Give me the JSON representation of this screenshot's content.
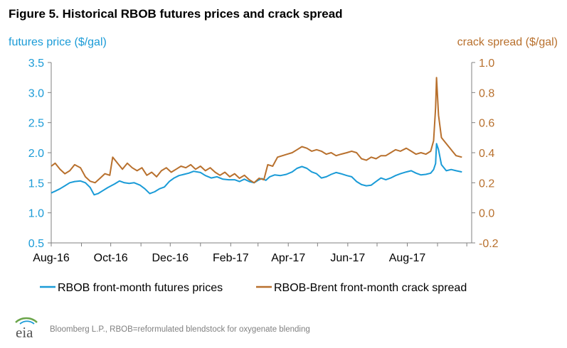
{
  "title": "Figure 5. Historical RBOB futures prices and crack spread",
  "source": "Bloomberg L.P., RBOB=reformulated blendstock for oxygenate blending",
  "logo_text": "eia",
  "colors": {
    "futures": "#1a9bd7",
    "crack": "#b8702d",
    "axis": "#808080"
  },
  "chart_data": {
    "type": "line",
    "title": "Figure 5. Historical RBOB futures prices and crack spread",
    "x_ticks": [
      "Aug-16",
      "Oct-16",
      "Dec-16",
      "Feb-17",
      "Apr-17",
      "Jun-17",
      "Aug-17"
    ],
    "x_range": [
      "2016-08-01",
      "2017-10-06"
    ],
    "y_left": {
      "label": "futures price ($/gal)",
      "range": [
        0.5,
        3.5
      ],
      "ticks": [
        "0.5",
        "1.0",
        "1.5",
        "2.0",
        "2.5",
        "3.0",
        "3.5"
      ]
    },
    "y_right": {
      "label": "crack spread ($/gal)",
      "range": [
        -0.2,
        1.0
      ],
      "ticks": [
        "-0.2",
        "0.0",
        "0.2",
        "0.4",
        "0.6",
        "0.8",
        "1.0"
      ]
    },
    "grid": false,
    "legend_position": "bottom",
    "series": [
      {
        "name": "RBOB front-month futures prices",
        "axis": "left",
        "color": "#1a9bd7",
        "points": [
          [
            "2016-08-01",
            1.33
          ],
          [
            "2016-08-05",
            1.36
          ],
          [
            "2016-08-10",
            1.4
          ],
          [
            "2016-08-15",
            1.45
          ],
          [
            "2016-08-20",
            1.5
          ],
          [
            "2016-08-25",
            1.52
          ],
          [
            "2016-08-31",
            1.53
          ],
          [
            "2016-09-05",
            1.5
          ],
          [
            "2016-09-10",
            1.42
          ],
          [
            "2016-09-14",
            1.3
          ],
          [
            "2016-09-18",
            1.32
          ],
          [
            "2016-09-22",
            1.36
          ],
          [
            "2016-09-28",
            1.42
          ],
          [
            "2016-10-05",
            1.48
          ],
          [
            "2016-10-10",
            1.53
          ],
          [
            "2016-10-15",
            1.5
          ],
          [
            "2016-10-20",
            1.49
          ],
          [
            "2016-10-25",
            1.5
          ],
          [
            "2016-10-31",
            1.46
          ],
          [
            "2016-11-05",
            1.4
          ],
          [
            "2016-11-10",
            1.32
          ],
          [
            "2016-11-15",
            1.35
          ],
          [
            "2016-11-20",
            1.4
          ],
          [
            "2016-11-25",
            1.43
          ],
          [
            "2016-11-30",
            1.52
          ],
          [
            "2016-12-05",
            1.58
          ],
          [
            "2016-12-10",
            1.62
          ],
          [
            "2016-12-15",
            1.64
          ],
          [
            "2016-12-20",
            1.66
          ],
          [
            "2016-12-25",
            1.69
          ],
          [
            "2017-01-01",
            1.67
          ],
          [
            "2017-01-06",
            1.62
          ],
          [
            "2017-01-12",
            1.58
          ],
          [
            "2017-01-18",
            1.6
          ],
          [
            "2017-01-24",
            1.56
          ],
          [
            "2017-01-30",
            1.55
          ],
          [
            "2017-02-05",
            1.55
          ],
          [
            "2017-02-10",
            1.52
          ],
          [
            "2017-02-15",
            1.56
          ],
          [
            "2017-02-20",
            1.52
          ],
          [
            "2017-02-25",
            1.5
          ],
          [
            "2017-03-01",
            1.54
          ],
          [
            "2017-03-05",
            1.57
          ],
          [
            "2017-03-09",
            1.54
          ],
          [
            "2017-03-13",
            1.6
          ],
          [
            "2017-03-18",
            1.63
          ],
          [
            "2017-03-24",
            1.62
          ],
          [
            "2017-03-30",
            1.64
          ],
          [
            "2017-04-05",
            1.68
          ],
          [
            "2017-04-10",
            1.74
          ],
          [
            "2017-04-15",
            1.77
          ],
          [
            "2017-04-20",
            1.74
          ],
          [
            "2017-04-25",
            1.68
          ],
          [
            "2017-04-30",
            1.65
          ],
          [
            "2017-05-05",
            1.58
          ],
          [
            "2017-05-10",
            1.6
          ],
          [
            "2017-05-15",
            1.64
          ],
          [
            "2017-05-20",
            1.67
          ],
          [
            "2017-05-25",
            1.65
          ],
          [
            "2017-05-31",
            1.62
          ],
          [
            "2017-06-05",
            1.6
          ],
          [
            "2017-06-10",
            1.52
          ],
          [
            "2017-06-15",
            1.47
          ],
          [
            "2017-06-20",
            1.45
          ],
          [
            "2017-06-25",
            1.46
          ],
          [
            "2017-06-30",
            1.52
          ],
          [
            "2017-07-05",
            1.58
          ],
          [
            "2017-07-10",
            1.55
          ],
          [
            "2017-07-15",
            1.58
          ],
          [
            "2017-07-20",
            1.62
          ],
          [
            "2017-07-25",
            1.65
          ],
          [
            "2017-07-31",
            1.68
          ],
          [
            "2017-08-05",
            1.7
          ],
          [
            "2017-08-10",
            1.66
          ],
          [
            "2017-08-15",
            1.63
          ],
          [
            "2017-08-20",
            1.64
          ],
          [
            "2017-08-25",
            1.66
          ],
          [
            "2017-08-28",
            1.72
          ],
          [
            "2017-08-30",
            1.82
          ],
          [
            "2017-08-31",
            2.15
          ],
          [
            "2017-09-02",
            2.05
          ],
          [
            "2017-09-05",
            1.8
          ],
          [
            "2017-09-10",
            1.7
          ],
          [
            "2017-09-15",
            1.72
          ],
          [
            "2017-09-20",
            1.7
          ],
          [
            "2017-09-26",
            1.68
          ]
        ]
      },
      {
        "name": "RBOB-Brent front-month crack spread",
        "axis": "right",
        "color": "#b8702d",
        "points": [
          [
            "2016-08-01",
            0.31
          ],
          [
            "2016-08-05",
            0.33
          ],
          [
            "2016-08-10",
            0.29
          ],
          [
            "2016-08-15",
            0.26
          ],
          [
            "2016-08-20",
            0.28
          ],
          [
            "2016-08-25",
            0.32
          ],
          [
            "2016-08-31",
            0.3
          ],
          [
            "2016-09-05",
            0.24
          ],
          [
            "2016-09-10",
            0.21
          ],
          [
            "2016-09-15",
            0.2
          ],
          [
            "2016-09-20",
            0.23
          ],
          [
            "2016-09-25",
            0.26
          ],
          [
            "2016-09-30",
            0.25
          ],
          [
            "2016-10-03",
            0.37
          ],
          [
            "2016-10-08",
            0.33
          ],
          [
            "2016-10-13",
            0.29
          ],
          [
            "2016-10-18",
            0.33
          ],
          [
            "2016-10-23",
            0.3
          ],
          [
            "2016-10-28",
            0.28
          ],
          [
            "2016-11-02",
            0.3
          ],
          [
            "2016-11-07",
            0.25
          ],
          [
            "2016-11-12",
            0.27
          ],
          [
            "2016-11-17",
            0.24
          ],
          [
            "2016-11-22",
            0.28
          ],
          [
            "2016-11-27",
            0.3
          ],
          [
            "2016-12-02",
            0.27
          ],
          [
            "2016-12-07",
            0.29
          ],
          [
            "2016-12-12",
            0.31
          ],
          [
            "2016-12-17",
            0.3
          ],
          [
            "2016-12-22",
            0.32
          ],
          [
            "2016-12-27",
            0.29
          ],
          [
            "2017-01-01",
            0.31
          ],
          [
            "2017-01-06",
            0.28
          ],
          [
            "2017-01-11",
            0.3
          ],
          [
            "2017-01-16",
            0.27
          ],
          [
            "2017-01-21",
            0.25
          ],
          [
            "2017-01-26",
            0.27
          ],
          [
            "2017-01-31",
            0.24
          ],
          [
            "2017-02-05",
            0.26
          ],
          [
            "2017-02-10",
            0.23
          ],
          [
            "2017-02-15",
            0.25
          ],
          [
            "2017-02-20",
            0.22
          ],
          [
            "2017-02-25",
            0.2
          ],
          [
            "2017-03-02",
            0.23
          ],
          [
            "2017-03-07",
            0.22
          ],
          [
            "2017-03-11",
            0.32
          ],
          [
            "2017-03-16",
            0.31
          ],
          [
            "2017-03-21",
            0.37
          ],
          [
            "2017-03-26",
            0.38
          ],
          [
            "2017-03-31",
            0.39
          ],
          [
            "2017-04-05",
            0.4
          ],
          [
            "2017-04-10",
            0.42
          ],
          [
            "2017-04-15",
            0.44
          ],
          [
            "2017-04-20",
            0.43
          ],
          [
            "2017-04-25",
            0.41
          ],
          [
            "2017-04-30",
            0.42
          ],
          [
            "2017-05-05",
            0.41
          ],
          [
            "2017-05-10",
            0.39
          ],
          [
            "2017-05-15",
            0.4
          ],
          [
            "2017-05-20",
            0.38
          ],
          [
            "2017-05-25",
            0.39
          ],
          [
            "2017-05-31",
            0.4
          ],
          [
            "2017-06-05",
            0.41
          ],
          [
            "2017-06-10",
            0.4
          ],
          [
            "2017-06-15",
            0.36
          ],
          [
            "2017-06-20",
            0.35
          ],
          [
            "2017-06-25",
            0.37
          ],
          [
            "2017-06-30",
            0.36
          ],
          [
            "2017-07-05",
            0.38
          ],
          [
            "2017-07-10",
            0.38
          ],
          [
            "2017-07-15",
            0.4
          ],
          [
            "2017-07-20",
            0.42
          ],
          [
            "2017-07-25",
            0.41
          ],
          [
            "2017-07-31",
            0.43
          ],
          [
            "2017-08-05",
            0.41
          ],
          [
            "2017-08-10",
            0.39
          ],
          [
            "2017-08-15",
            0.4
          ],
          [
            "2017-08-20",
            0.39
          ],
          [
            "2017-08-25",
            0.41
          ],
          [
            "2017-08-28",
            0.48
          ],
          [
            "2017-08-30",
            0.7
          ],
          [
            "2017-08-31",
            0.9
          ],
          [
            "2017-09-02",
            0.65
          ],
          [
            "2017-09-05",
            0.5
          ],
          [
            "2017-09-10",
            0.46
          ],
          [
            "2017-09-15",
            0.42
          ],
          [
            "2017-09-20",
            0.38
          ],
          [
            "2017-09-26",
            0.37
          ]
        ]
      }
    ]
  }
}
